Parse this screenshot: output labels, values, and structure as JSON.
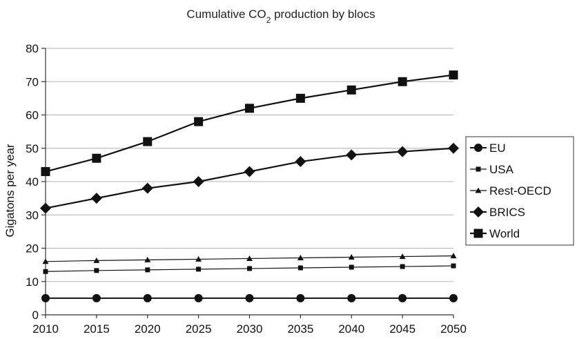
{
  "chart_data": {
    "type": "line",
    "title": "Cumulative CO",
    "title_sub": "2",
    "title_rest": " production by blocs",
    "xlabel": "",
    "ylabel": "Gigatons per year",
    "x": [
      2010,
      2015,
      2020,
      2025,
      2030,
      2035,
      2040,
      2045,
      2050
    ],
    "xticks": [
      "2010",
      "2015",
      "2020",
      "2025",
      "2030",
      "2035",
      "2040",
      "2045",
      "2050"
    ],
    "yticks": [
      "0",
      "10",
      "20",
      "30",
      "40",
      "50",
      "60",
      "70",
      "80"
    ],
    "ylim": [
      0,
      80
    ],
    "grid": true,
    "legend_position": "right",
    "series": [
      {
        "name": "EU",
        "marker": "circle",
        "values": [
          5,
          5,
          5,
          5,
          5,
          5,
          5,
          5,
          5
        ]
      },
      {
        "name": "USA",
        "marker": "small-square",
        "values": [
          13,
          13.3,
          13.5,
          13.7,
          13.9,
          14.1,
          14.3,
          14.5,
          14.7
        ]
      },
      {
        "name": "Rest-OECD",
        "marker": "triangle",
        "values": [
          16,
          16.3,
          16.5,
          16.7,
          16.9,
          17.1,
          17.3,
          17.5,
          17.7
        ]
      },
      {
        "name": "BRICS",
        "marker": "diamond",
        "values": [
          32,
          35,
          38,
          40,
          43,
          46,
          48,
          49,
          50
        ]
      },
      {
        "name": "World",
        "marker": "square",
        "values": [
          43,
          47,
          52,
          58,
          62,
          65,
          67.5,
          70,
          72
        ]
      }
    ],
    "colors": {
      "line": "#111111",
      "grid": "#b0b0b0"
    }
  }
}
